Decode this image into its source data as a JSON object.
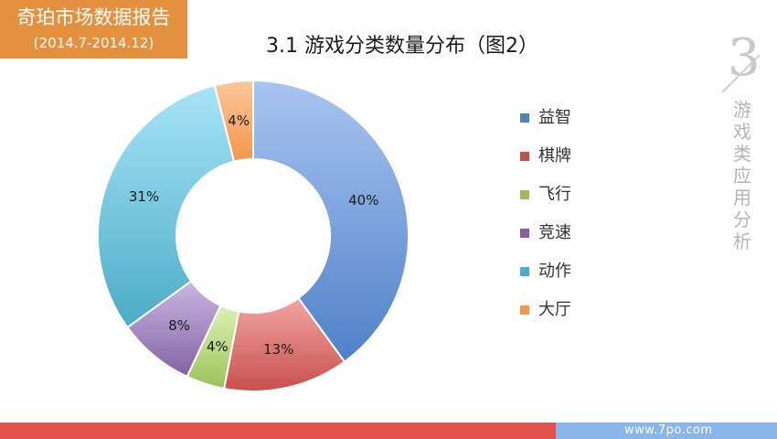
{
  "brand": {
    "title": "奇珀市场数据报告",
    "period": "(2014.7-2014.12)"
  },
  "section": {
    "number": "3",
    "label": "游戏类应用分析"
  },
  "footer": {
    "url": "www.7po.com"
  },
  "colors": {
    "brand": "#e3913f",
    "footer_red": "#e0524a",
    "footer_blue": "#8ab6ea"
  },
  "chart_data": {
    "type": "pie",
    "style": "donut",
    "title": "3.1  游戏分类数量分布（图2）",
    "legend_position": "right",
    "categories": [
      "益智",
      "棋牌",
      "飞行",
      "竞速",
      "动作",
      "大厅"
    ],
    "values": [
      40,
      13,
      4,
      8,
      31,
      4
    ],
    "labels": [
      "40%",
      "13%",
      "4%",
      "8%",
      "31%",
      "4%"
    ],
    "colors": [
      [
        "#a9c5f0",
        "#4f81c8"
      ],
      [
        "#f2a5a3",
        "#c8504d"
      ],
      [
        "#dcf1b2",
        "#9bc35a"
      ],
      [
        "#cbb6e3",
        "#8064a2"
      ],
      [
        "#a8e4f7",
        "#4bacc6"
      ],
      [
        "#fbc79a",
        "#f3974a"
      ]
    ],
    "legend_colors": [
      "#4f81bd",
      "#c0504d",
      "#9bbb59",
      "#8064a2",
      "#4bacc6",
      "#f79646"
    ]
  }
}
